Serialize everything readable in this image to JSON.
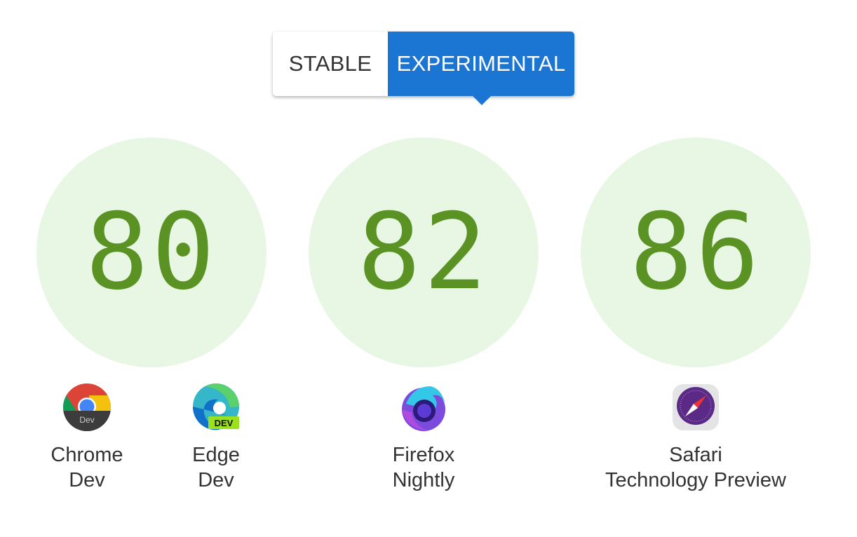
{
  "toggle": {
    "stable_label": "STABLE",
    "experimental_label": "EXPERIMENTAL",
    "selected": "EXPERIMENTAL",
    "accent_color": "#1b76d3"
  },
  "scores": [
    {
      "value": "80"
    },
    {
      "value": "82"
    },
    {
      "value": "86"
    }
  ],
  "score_color": "#5a9324",
  "circle_color": "#e8f7e4",
  "browsers": [
    {
      "line1": "Chrome",
      "line2": "Dev",
      "icon": "chrome-dev-icon",
      "badge": "Dev"
    },
    {
      "line1": "Edge",
      "line2": "Dev",
      "icon": "edge-dev-icon",
      "badge": "DEV"
    },
    {
      "line1": "Firefox",
      "line2": "Nightly",
      "icon": "firefox-nightly-icon"
    },
    {
      "line1": "Safari",
      "line2": "Technology Preview",
      "icon": "safari-technology-preview-icon"
    }
  ]
}
